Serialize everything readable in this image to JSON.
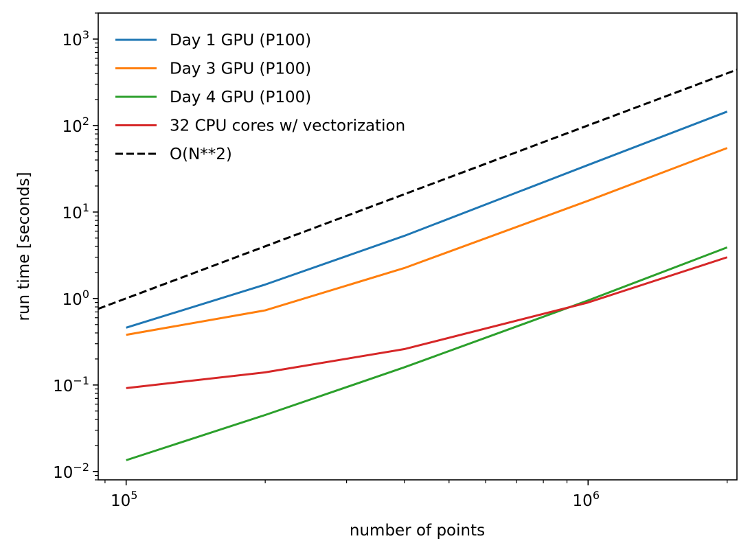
{
  "chart_data": {
    "type": "line",
    "xscale": "log",
    "yscale": "log",
    "xlabel": "number of points",
    "ylabel": "run time [seconds]",
    "xlim": [
      87000,
      2100000
    ],
    "ylim": [
      0.008,
      2000
    ],
    "grid": false,
    "legend_position": "top-left",
    "x_ticks": [
      {
        "base": "10",
        "exp": "5",
        "value": 100000
      },
      {
        "base": "10",
        "exp": "6",
        "value": 1000000
      }
    ],
    "y_ticks": [
      {
        "base": "10",
        "exp": "−2",
        "value": 0.01
      },
      {
        "base": "10",
        "exp": "−1",
        "value": 0.1
      },
      {
        "base": "10",
        "exp": "0",
        "value": 1
      },
      {
        "base": "10",
        "exp": "1",
        "value": 10
      },
      {
        "base": "10",
        "exp": "2",
        "value": 100
      },
      {
        "base": "10",
        "exp": "3",
        "value": 1000
      }
    ],
    "series": [
      {
        "name": "Day 1 GPU (P100)",
        "color": "#1f77b4",
        "style": "solid",
        "x": [
          100000,
          200000,
          400000,
          1000000,
          2000000
        ],
        "y": [
          0.46,
          1.45,
          5.3,
          35,
          145
        ]
      },
      {
        "name": "Day 3 GPU (P100)",
        "color": "#ff7f0e",
        "style": "solid",
        "x": [
          100000,
          200000,
          400000,
          1000000,
          2000000
        ],
        "y": [
          0.38,
          0.73,
          2.25,
          13.5,
          55
        ]
      },
      {
        "name": "Day 4 GPU (P100)",
        "color": "#2ca02c",
        "style": "solid",
        "x": [
          100000,
          200000,
          400000,
          1000000,
          2000000
        ],
        "y": [
          0.0135,
          0.045,
          0.16,
          0.95,
          3.9
        ]
      },
      {
        "name": "32 CPU cores w/ vectorization",
        "color": "#d62728",
        "style": "solid",
        "x": [
          100000,
          200000,
          400000,
          1000000,
          2000000
        ],
        "y": [
          0.092,
          0.14,
          0.26,
          0.9,
          3.0
        ]
      },
      {
        "name": "O(N**2)",
        "color": "#000000",
        "style": "dashed",
        "x": [
          87000,
          2100000
        ],
        "y": [
          0.76,
          443
        ]
      }
    ]
  }
}
